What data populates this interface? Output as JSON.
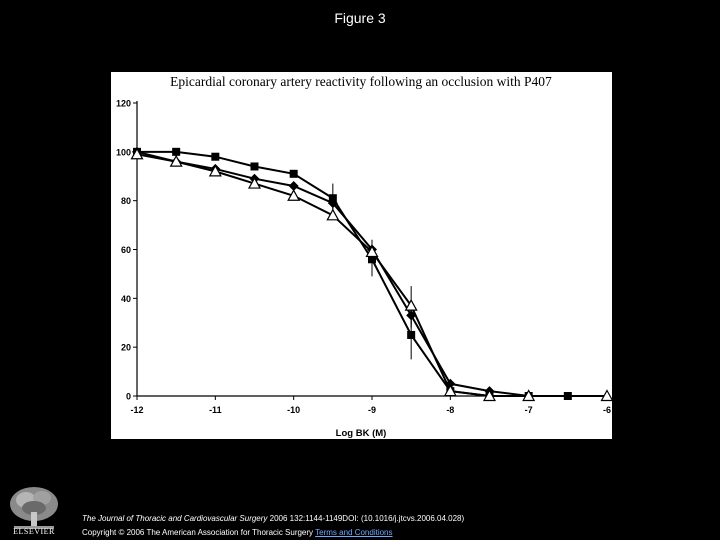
{
  "figure_label": "Figure 3",
  "chart_data": {
    "type": "line",
    "title": "Epicardial coronary artery reactivity following an occlusion with P407",
    "xlabel": "Log BK (M)",
    "ylabel": "",
    "xlim": [
      -12,
      -6
    ],
    "ylim": [
      0,
      120
    ],
    "x_ticks": [
      -12,
      -11,
      -10,
      -9,
      -8,
      -7,
      -6
    ],
    "y_ticks": [
      0,
      20,
      40,
      60,
      80,
      100,
      120
    ],
    "legend": "none",
    "series": [
      {
        "marker": "square",
        "x": [
          -12,
          -11.5,
          -11,
          -10.5,
          -10,
          -9.5,
          -9,
          -8.5,
          -8,
          -7.5,
          -7,
          -6.5
        ],
        "y": [
          100,
          100,
          98,
          94,
          91,
          81,
          56,
          25,
          2,
          0,
          0,
          0
        ],
        "error": [
          0,
          0,
          0,
          0,
          0,
          6,
          7,
          10,
          0,
          0,
          0,
          0
        ]
      },
      {
        "marker": "diamond",
        "x": [
          -12,
          -11.5,
          -11,
          -10.5,
          -10,
          -9.5,
          -9,
          -8.5,
          -8,
          -7.5,
          -7
        ],
        "y": [
          100,
          96,
          93,
          89,
          86,
          79,
          60,
          33,
          5,
          2,
          0
        ],
        "error": [
          0,
          0,
          0,
          0,
          0,
          3,
          4,
          5,
          0,
          0,
          0
        ]
      },
      {
        "marker": "triangle-open",
        "x": [
          -12,
          -11.5,
          -11,
          -10.5,
          -10,
          -9.5,
          -9,
          -8.5,
          -8,
          -7.5,
          -7,
          -6
        ],
        "y": [
          99,
          96,
          92,
          87,
          82,
          74,
          59,
          37,
          2,
          0,
          0,
          0
        ],
        "error": [
          0,
          0,
          0,
          0,
          0,
          0,
          0,
          8,
          0,
          0,
          0,
          0
        ]
      }
    ]
  },
  "footer": {
    "logo_text": "ELSEVIER",
    "journal": "The Journal of Thoracic and Cardiovascular Surgery",
    "citation_rest": " 2006 132:1144-1149DOI: (10.1016/j.jtcvs.2006.04.028)",
    "copyright": "Copyright © 2006 The American Association for Thoracic Surgery ",
    "terms_link": "Terms and Conditions"
  }
}
